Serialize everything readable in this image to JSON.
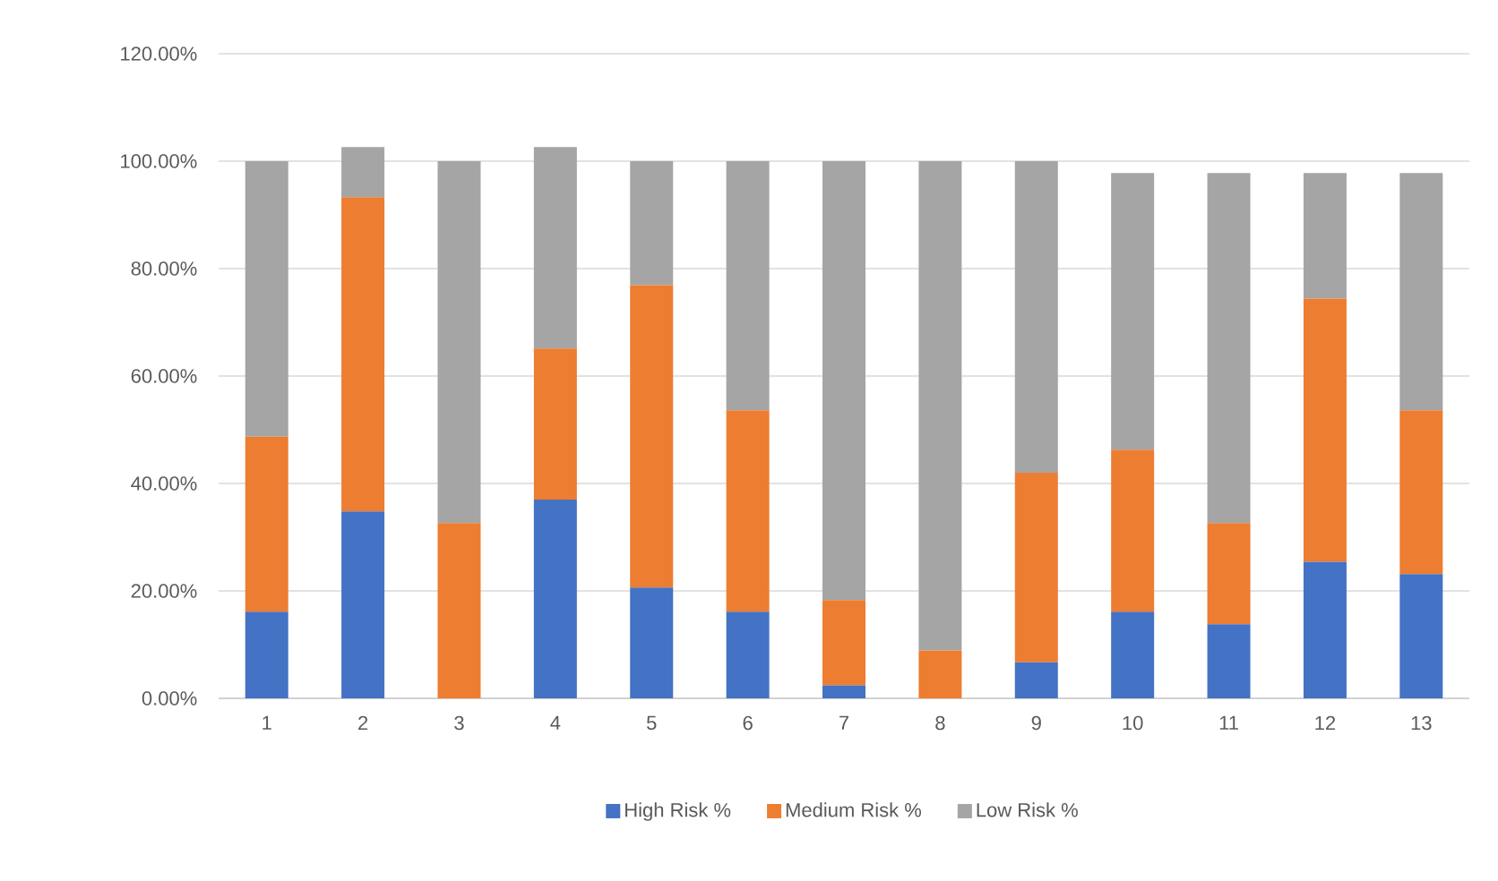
{
  "chart_data": {
    "type": "bar",
    "stacked": true,
    "categories": [
      "1",
      "2",
      "3",
      "4",
      "5",
      "6",
      "7",
      "8",
      "9",
      "10",
      "11",
      "12",
      "13"
    ],
    "series": [
      {
        "name": "High Risk %",
        "color": "#4472c4",
        "values": [
          16.1,
          34.8,
          0,
          37,
          20.6,
          16.1,
          2.4,
          0,
          6.7,
          16.1,
          13.8,
          25.4,
          23.1
        ]
      },
      {
        "name": "Medium Risk %",
        "color": "#ed7d31",
        "values": [
          32.6,
          58.5,
          32.6,
          28.1,
          56.3,
          37.5,
          15.9,
          8.9,
          35.3,
          30.2,
          18.8,
          49,
          30.5
        ]
      },
      {
        "name": "Low Risk %",
        "color": "#a5a5a5",
        "values": [
          51.3,
          9.3,
          67.4,
          37.5,
          23.1,
          46.4,
          81.7,
          91.1,
          58,
          51.5,
          65.2,
          23.4,
          44.2
        ]
      }
    ],
    "ylim": [
      0,
      120
    ],
    "yticks": [
      {
        "value": 0,
        "label": "0.00%"
      },
      {
        "value": 20,
        "label": "20.00%"
      },
      {
        "value": 40,
        "label": "40.00%"
      },
      {
        "value": 60,
        "label": "60.00%"
      },
      {
        "value": 80,
        "label": "80.00%"
      },
      {
        "value": 100,
        "label": "100.00%"
      },
      {
        "value": 120,
        "label": "120.00%"
      }
    ],
    "grid": "y",
    "legend": "bottom"
  }
}
